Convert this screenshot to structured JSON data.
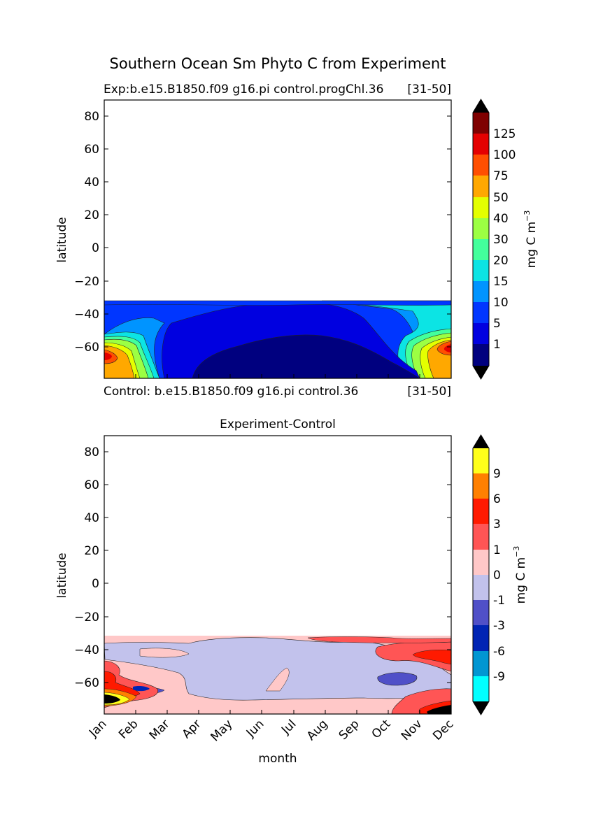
{
  "suptitle": "Southern Ocean Sm Phyto C from Experiment",
  "chart_data": [
    {
      "type": "contour",
      "title_left": "Exp:b.e15.B1850.f09 g16.pi control.progChl.36",
      "title_right": "[31-50]",
      "bottom_left": "Control: b.e15.B1850.f09 g16.pi control.36",
      "bottom_right": "[31-50]",
      "ylabel": "latitude",
      "ylim": [
        -78,
        90
      ],
      "yticks": [
        "80",
        "60",
        "40",
        "20",
        "0",
        "−20",
        "−40",
        "−60"
      ],
      "xlim": [
        1,
        12
      ],
      "colorbar": {
        "label": "mg C m",
        "label_sup": "−3",
        "extend": "both",
        "extend_low_color": "#000000",
        "extend_high_color": "#000000",
        "tick_labels": [
          "1",
          "5",
          "10",
          "15",
          "20",
          "30",
          "40",
          "50",
          "75",
          "100",
          "125"
        ],
        "colors": [
          "#00007f",
          "#0000e0",
          "#0036ff",
          "#0094ff",
          "#0ce4e4",
          "#43ff9c",
          "#9cff43",
          "#e4ff00",
          "#ffa800",
          "#ff4f00",
          "#e40000",
          "#7f0000"
        ]
      }
    },
    {
      "type": "contour",
      "title": "Experiment-Control",
      "ylabel": "latitude",
      "xlabel": "month",
      "ylim": [
        -78,
        90
      ],
      "yticks": [
        "80",
        "60",
        "40",
        "20",
        "0",
        "−20",
        "−40",
        "−60"
      ],
      "xticks": [
        "Jan",
        "Feb",
        "Mar",
        "Apr",
        "May",
        "Jun",
        "Jul",
        "Aug",
        "Sep",
        "Oct",
        "Nov",
        "Dec"
      ],
      "colorbar": {
        "label": "mg C m",
        "label_sup": "−3",
        "extend": "both",
        "extend_low_color": "#000000",
        "extend_high_color": "#000000",
        "tick_labels": [
          "-9",
          "-6",
          "-3",
          "-1",
          "0",
          "1",
          "3",
          "6",
          "9"
        ],
        "colors": [
          "#00ffff",
          "#0096d2",
          "#0024b4",
          "#5050c8",
          "#c2c2ec",
          "#ffc8c8",
          "#ff5555",
          "#ff1a00",
          "#ff8000",
          "#ffff1a"
        ]
      }
    }
  ]
}
